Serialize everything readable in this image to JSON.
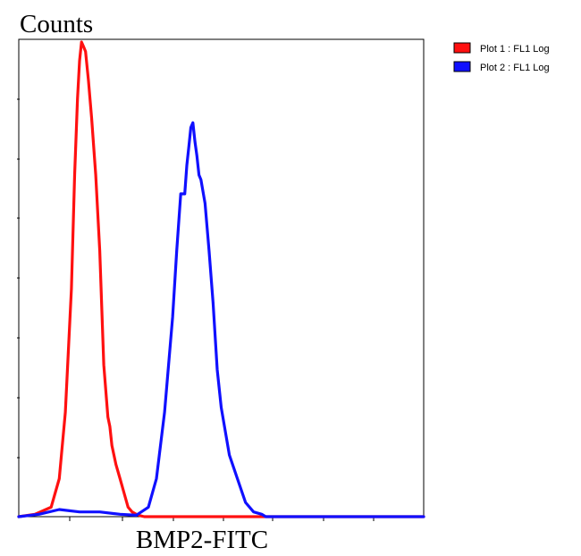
{
  "chart_data": {
    "type": "line",
    "title": "",
    "ylabel": "Counts",
    "xlabel": "BMP2-FITC",
    "x_scale": "log",
    "xlim": [
      0,
      10
    ],
    "ylim": [
      0,
      100
    ],
    "x_tick_labels": [],
    "y_tick_labels": [],
    "grid": false,
    "legend_position": "top-right, outside plot",
    "colors": {
      "series_1": "#ff1010",
      "series_2": "#1010ff",
      "axis": "#000000",
      "background": "#ffffff"
    },
    "series": [
      {
        "name": "Plot 1 : FL1 Log",
        "color": "#ff1010",
        "x": [
          0.0,
          0.4,
          0.8,
          1.0,
          1.15,
          1.3,
          1.38,
          1.45,
          1.5,
          1.55,
          1.6,
          1.65,
          1.72,
          1.8,
          1.9,
          2.0,
          2.1,
          2.2,
          2.25,
          2.3,
          2.4,
          2.5,
          2.6,
          2.7,
          2.8,
          2.9,
          3.0,
          3.1,
          3.2,
          3.4,
          4.0,
          6.0,
          10.0
        ],
        "y": [
          0,
          0.5,
          2,
          8,
          22,
          48,
          72,
          88,
          96,
          100,
          99,
          98,
          92,
          84,
          72,
          56,
          32,
          21,
          19,
          15,
          11,
          8,
          5,
          2,
          1,
          0.5,
          0.2,
          0,
          0,
          0,
          0,
          0,
          0
        ]
      },
      {
        "name": "Plot 2 : FL1 Log",
        "color": "#1010ff",
        "x": [
          0.0,
          0.5,
          1.0,
          1.5,
          2.0,
          2.5,
          2.9,
          3.2,
          3.4,
          3.6,
          3.8,
          3.9,
          4.0,
          4.1,
          4.15,
          4.2,
          4.25,
          4.3,
          4.35,
          4.4,
          4.45,
          4.5,
          4.6,
          4.7,
          4.8,
          4.9,
          5.0,
          5.2,
          5.4,
          5.6,
          5.8,
          6.0,
          6.1,
          6.3,
          6.6,
          7.0,
          8.0,
          10.0
        ],
        "y": [
          0,
          0.5,
          1.5,
          1,
          1,
          0.5,
          0.3,
          2,
          8,
          22,
          42,
          56,
          68,
          68,
          74,
          78,
          82,
          83,
          79,
          76,
          72,
          71,
          66,
          56,
          45,
          31,
          23,
          13,
          8,
          3,
          1,
          0.5,
          0,
          0,
          0,
          0,
          0,
          0
        ]
      }
    ]
  }
}
